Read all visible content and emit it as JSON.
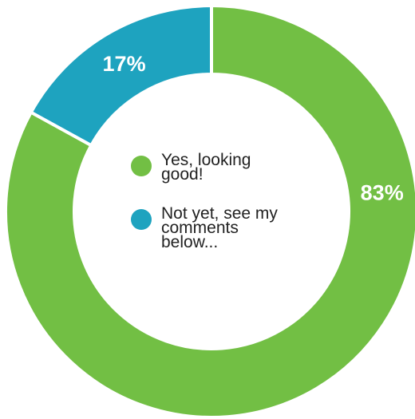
{
  "chart_data": {
    "type": "pie",
    "donut": true,
    "categories": [
      "Yes, looking good!",
      "Not yet, see my comments below..."
    ],
    "values": [
      83,
      17
    ],
    "data_labels": [
      "83%",
      "17%"
    ],
    "colors": [
      "#72bf44",
      "#1ea3bf"
    ],
    "legend_position": "center",
    "title": ""
  }
}
